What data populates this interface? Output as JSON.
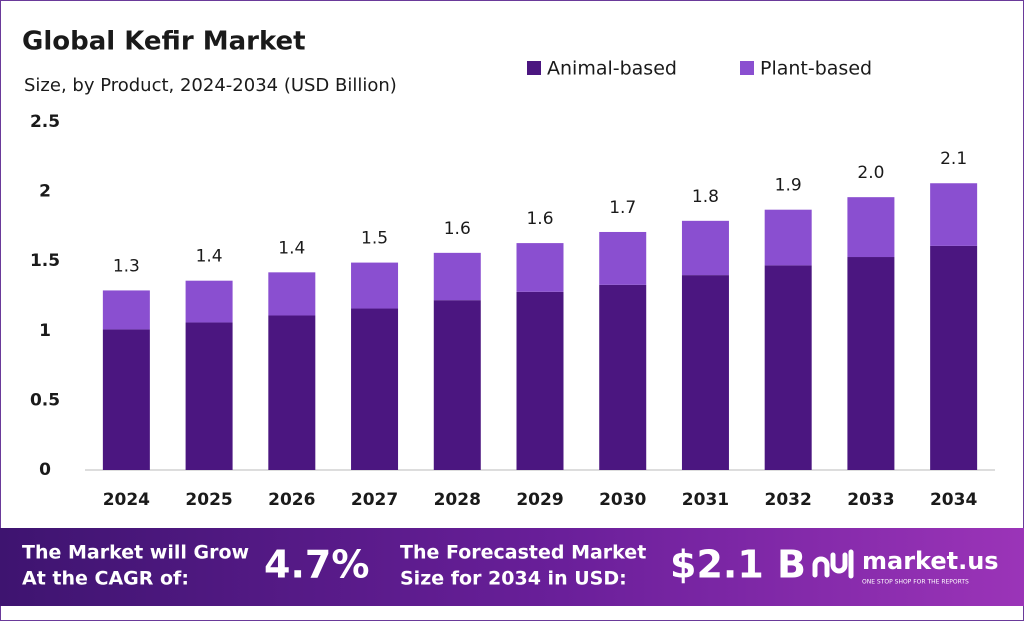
{
  "chart_data": {
    "type": "stacked_bar",
    "title": "Global Kefir Market",
    "subtitle": "Size, by Product, 2024-2034 (USD Billion)",
    "categories": [
      "2024",
      "2025",
      "2026",
      "2027",
      "2028",
      "2029",
      "2030",
      "2031",
      "2032",
      "2033",
      "2034"
    ],
    "series": [
      {
        "name": "Animal-based",
        "color": "#4b1680",
        "values": [
          1.01,
          1.06,
          1.11,
          1.16,
          1.22,
          1.28,
          1.33,
          1.4,
          1.47,
          1.53,
          1.61
        ]
      },
      {
        "name": "Plant-based",
        "color": "#8a4fd0",
        "values": [
          0.28,
          0.3,
          0.31,
          0.33,
          0.34,
          0.35,
          0.38,
          0.39,
          0.4,
          0.43,
          0.45
        ]
      }
    ],
    "totals": [
      1.29,
      1.36,
      1.42,
      1.49,
      1.56,
      1.63,
      1.71,
      1.79,
      1.87,
      1.96,
      2.06
    ],
    "total_labels": [
      "1.3",
      "1.4",
      "1.4",
      "1.5",
      "1.6",
      "1.6",
      "1.7",
      "1.8",
      "1.9",
      "2.0",
      "2.1"
    ],
    "ylim": [
      0,
      2.5
    ],
    "yticks": [
      0,
      0.5,
      1,
      1.5,
      2,
      2.5
    ],
    "grid": false
  },
  "footer": {
    "cagr_text": [
      "The Market will Grow",
      "At the CAGR of:"
    ],
    "cagr_value": "4.7%",
    "forecast_text": [
      "The Forecasted Market",
      "Size for 2034 in USD:"
    ],
    "forecast_value": "$2.1 B",
    "brand": "market.us",
    "tagline": "ONE STOP SHOP FOR THE REPORTS"
  }
}
